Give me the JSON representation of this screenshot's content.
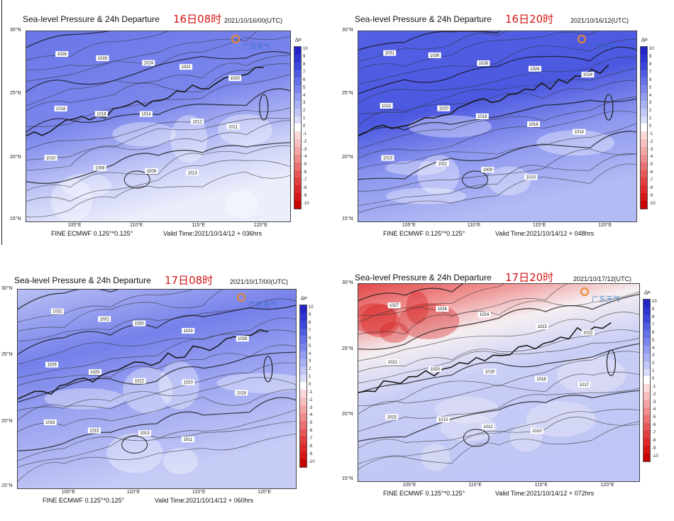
{
  "panels": [
    {
      "title": "Sea-level Pressure & 24h Departure",
      "tag": "16日08时",
      "date": "2021/10/16/00(UTC)",
      "source": "FINE ECMWF 0.125°*0.125°",
      "valid": "Valid Time:2021/10/14/12 + 036hrs",
      "scheme": "blue1",
      "isobars": [
        "1026",
        "1028",
        "1024",
        "1022",
        "1020",
        "1018",
        "1016",
        "1014",
        "1012",
        "1011",
        "1010",
        "1008",
        "1009",
        "1013"
      ]
    },
    {
      "title": "Sea-level Pressure & 24h Departure",
      "tag": "16日20时",
      "date": "2021/10/16/12(UTC)",
      "source": "FINE ECMWF 0.125°*0.125°",
      "valid": "Valid Time:2021/10/14/12 + 048hrs",
      "scheme": "blue2",
      "isobars": [
        "1031",
        "1030",
        "1028",
        "1026",
        "1024",
        "1022",
        "1020",
        "1018",
        "1016",
        "1014",
        "1013",
        "1011",
        "1009",
        "1010"
      ]
    },
    {
      "title": "Sea-level Pressure & 24h Departure",
      "tag": "17日08时",
      "date": "2021/10/17/00(UTC)",
      "source": "FINE ECMWF 0.125°*0.125°",
      "valid": "Valid Time:2021/10/14/12 + 060hrs",
      "scheme": "blue3",
      "isobars": [
        "1032",
        "1031",
        "1030",
        "1029",
        "1028",
        "1026",
        "1025",
        "1022",
        "1020",
        "1018",
        "1016",
        "1015",
        "1013",
        "1011"
      ]
    },
    {
      "title": "Sea-level Pressure & 24h Departure",
      "tag": "17日20时",
      "date": "2021/10/17/12(UTC)",
      "source": "FINE ECMWF 0.125°*0.125°",
      "valid": "Valid Time:2021/10/14/12 + 072hrs",
      "scheme": "red",
      "isobars": [
        "1027",
        "1026",
        "1024",
        "1023",
        "1022",
        "1021",
        "1020",
        "1019",
        "1018",
        "1017",
        "1015",
        "1013",
        "1012",
        "1010"
      ]
    }
  ],
  "lat_labels": [
    "30°N",
    "25°N",
    "20°N",
    "15°N"
  ],
  "lon_labels": [
    "105°E",
    "110°E",
    "115°E",
    "120°E"
  ],
  "colorbar": {
    "title": "δP",
    "ticks": [
      "10",
      "9",
      "8",
      "7",
      "6",
      "5",
      "4",
      "3",
      "2",
      "1",
      "0",
      "-1",
      "-2",
      "-3",
      "-4",
      "-5",
      "-6",
      "-7",
      "-8",
      "-9",
      "-10"
    ],
    "colors": [
      "#2323c8",
      "#2f35d2",
      "#3c48dc",
      "#4f5de2",
      "#6471e8",
      "#7b86ec",
      "#929cf0",
      "#a9b1f3",
      "#c1c7f6",
      "#d9ddf9",
      "#ffffff",
      "#fbd9d9",
      "#f7c0c0",
      "#f3a6a6",
      "#ef8c8c",
      "#eb7272",
      "#e65858",
      "#e13e3e",
      "#dc2a2a",
      "#d41616",
      "#c80000"
    ]
  },
  "logo_text": "广东天气"
}
